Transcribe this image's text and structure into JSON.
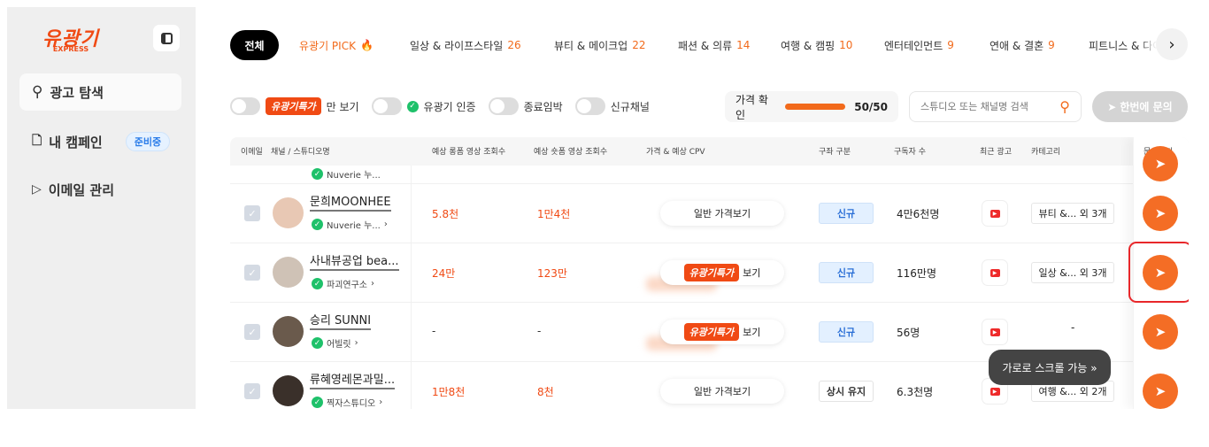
{
  "sidebar": {
    "logo": "유광기",
    "logo_sub": "EXPRESS",
    "items": [
      {
        "label": "광고 탐색",
        "icon": "search-icon"
      },
      {
        "label": "내 캠페인",
        "badge": "준비중",
        "icon": "document-icon"
      },
      {
        "label": "이메일 관리",
        "icon": "send-icon"
      }
    ]
  },
  "tabs": [
    {
      "label": "전체"
    },
    {
      "label": "유광기 PICK"
    },
    {
      "label": "일상 & 라이프스타일",
      "count": "26"
    },
    {
      "label": "뷰티 & 메이크업",
      "count": "22"
    },
    {
      "label": "패션 & 의류",
      "count": "14"
    },
    {
      "label": "여행 & 캠핑",
      "count": "10"
    },
    {
      "label": "엔터테인먼트",
      "count": "9"
    },
    {
      "label": "연애 & 결혼",
      "count": "9"
    },
    {
      "label": "피트니스 & 다이"
    }
  ],
  "filters": {
    "special_tag": "유광기특가",
    "special_suffix": "만 보기",
    "certified": "유광기 인증",
    "ending": "종료임박",
    "new_channel": "신규채널"
  },
  "price_check": {
    "label": "가격 확인",
    "value": "50/50",
    "progress": 1.0
  },
  "search": {
    "placeholder": "스튜디오 또는 채널명 검색"
  },
  "ask_all": "한번에 문의",
  "columns": [
    "이메일",
    "채널 / 스튜디오명",
    "예상 롱폼 영상 조회수",
    "예상 숏폼 영상 조회수",
    "가격 & 예상 CPV",
    "구좌 구분",
    "구독자 수",
    "최근 광고",
    "카테고리",
    "문의하기"
  ],
  "partial_row": {
    "studio": "Nuverie 누..."
  },
  "rows": [
    {
      "name": "문희MOONHEE",
      "studio": "Nuverie 누...",
      "long": "5.8천",
      "short": "1만4천",
      "price": "일반 가격보기",
      "special": false,
      "type": "신규",
      "subs": "4만6천명",
      "category": "뷰티 &... 외 3개"
    },
    {
      "name": "사내뷰공업 bea...",
      "studio": "파괴연구소",
      "long": "24만",
      "short": "123만",
      "price": "보기",
      "special": true,
      "type": "신규",
      "subs": "116만명",
      "category": "일상 &... 외 3개"
    },
    {
      "name": "승리 SUNNI",
      "studio": "어빌릿",
      "long": "-",
      "short": "-",
      "price": "보기",
      "special": true,
      "type": "신규",
      "subs": "56명",
      "category": "-"
    },
    {
      "name": "류혜영레몬과밀...",
      "studio": "찍자스튜디오",
      "long": "1만8천",
      "short": "8천",
      "price": "일반 가격보기",
      "special": false,
      "type": "상시 유지",
      "subs": "6.3천명",
      "category": "여행 &... 외 2개"
    }
  ],
  "tooltip": "가로로 스크롤 가능 »",
  "colors": {
    "accent": "#f26a1b",
    "brand": "#f04a14",
    "highlight": "#e8272a"
  }
}
